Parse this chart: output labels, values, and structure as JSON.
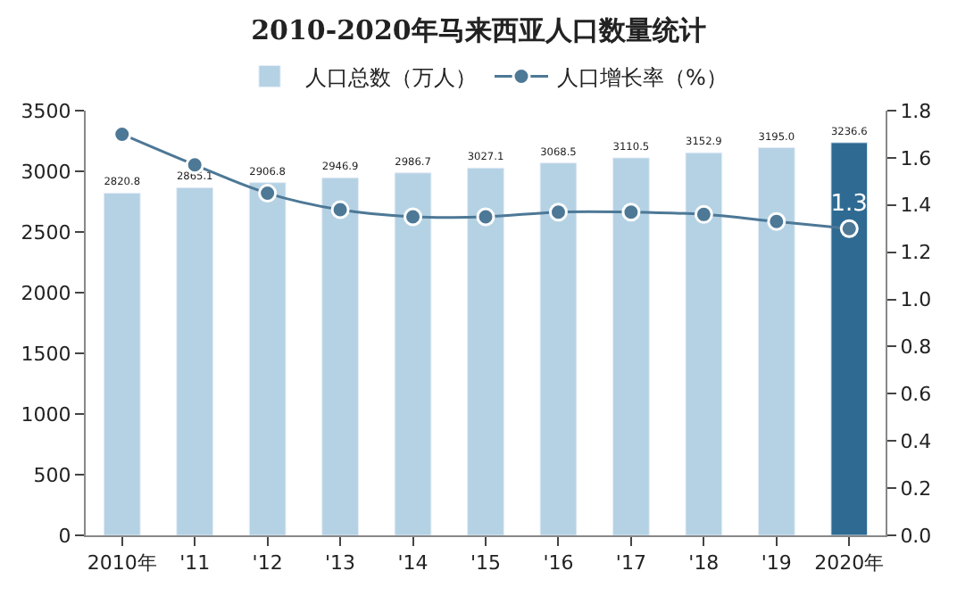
{
  "chart_data": {
    "type": "bar",
    "title": "2010-2020年马来西亚人口数量统计",
    "categories": [
      "2010年",
      "'11",
      "'12",
      "'13",
      "'14",
      "'15",
      "'16",
      "'17",
      "'18",
      "'19",
      "2020年"
    ],
    "series": [
      {
        "name": "人口总数（万人）",
        "colors": [
          "#b4d2e4",
          "#b4d2e4",
          "#b4d2e4",
          "#b4d2e4",
          "#b4d2e4",
          "#b4d2e4",
          "#b4d2e4",
          "#b4d2e4",
          "#b4d2e4",
          "#b4d2e4",
          "#2e6a92"
        ],
        "values": [
          2820.8,
          2865.1,
          2906.8,
          2946.9,
          2986.7,
          3027.1,
          3068.5,
          3110.5,
          3152.9,
          3195.0,
          3236.6
        ],
        "value_labels": [
          "2820.8",
          "2865.1",
          "2906.8",
          "2946.9",
          "2986.7",
          "3027.1",
          "3068.5",
          "3110.5",
          "3152.9",
          "3195.0",
          "3236.6"
        ]
      },
      {
        "name": "人口增长率（%）",
        "type": "line",
        "axis": "y2",
        "color": "#4d7896",
        "values": [
          1.7,
          1.57,
          1.45,
          1.38,
          1.35,
          1.35,
          1.37,
          1.37,
          1.36,
          1.33,
          1.3
        ],
        "value_labels": [
          null,
          null,
          null,
          null,
          null,
          null,
          null,
          null,
          null,
          null,
          "1.3"
        ]
      }
    ],
    "ylim": [
      0,
      3500
    ],
    "yticks": [
      0,
      500,
      1000,
      1500,
      2000,
      2500,
      3000,
      3500
    ],
    "y2lim": [
      0,
      1.8
    ],
    "y2ticks": [
      "0.0",
      "0.2",
      "0.4",
      "0.6",
      "0.8",
      "1.0",
      "1.2",
      "1.4",
      "1.6",
      "1.8"
    ],
    "legend": "top",
    "marker": "circle",
    "line_style": "solid"
  }
}
